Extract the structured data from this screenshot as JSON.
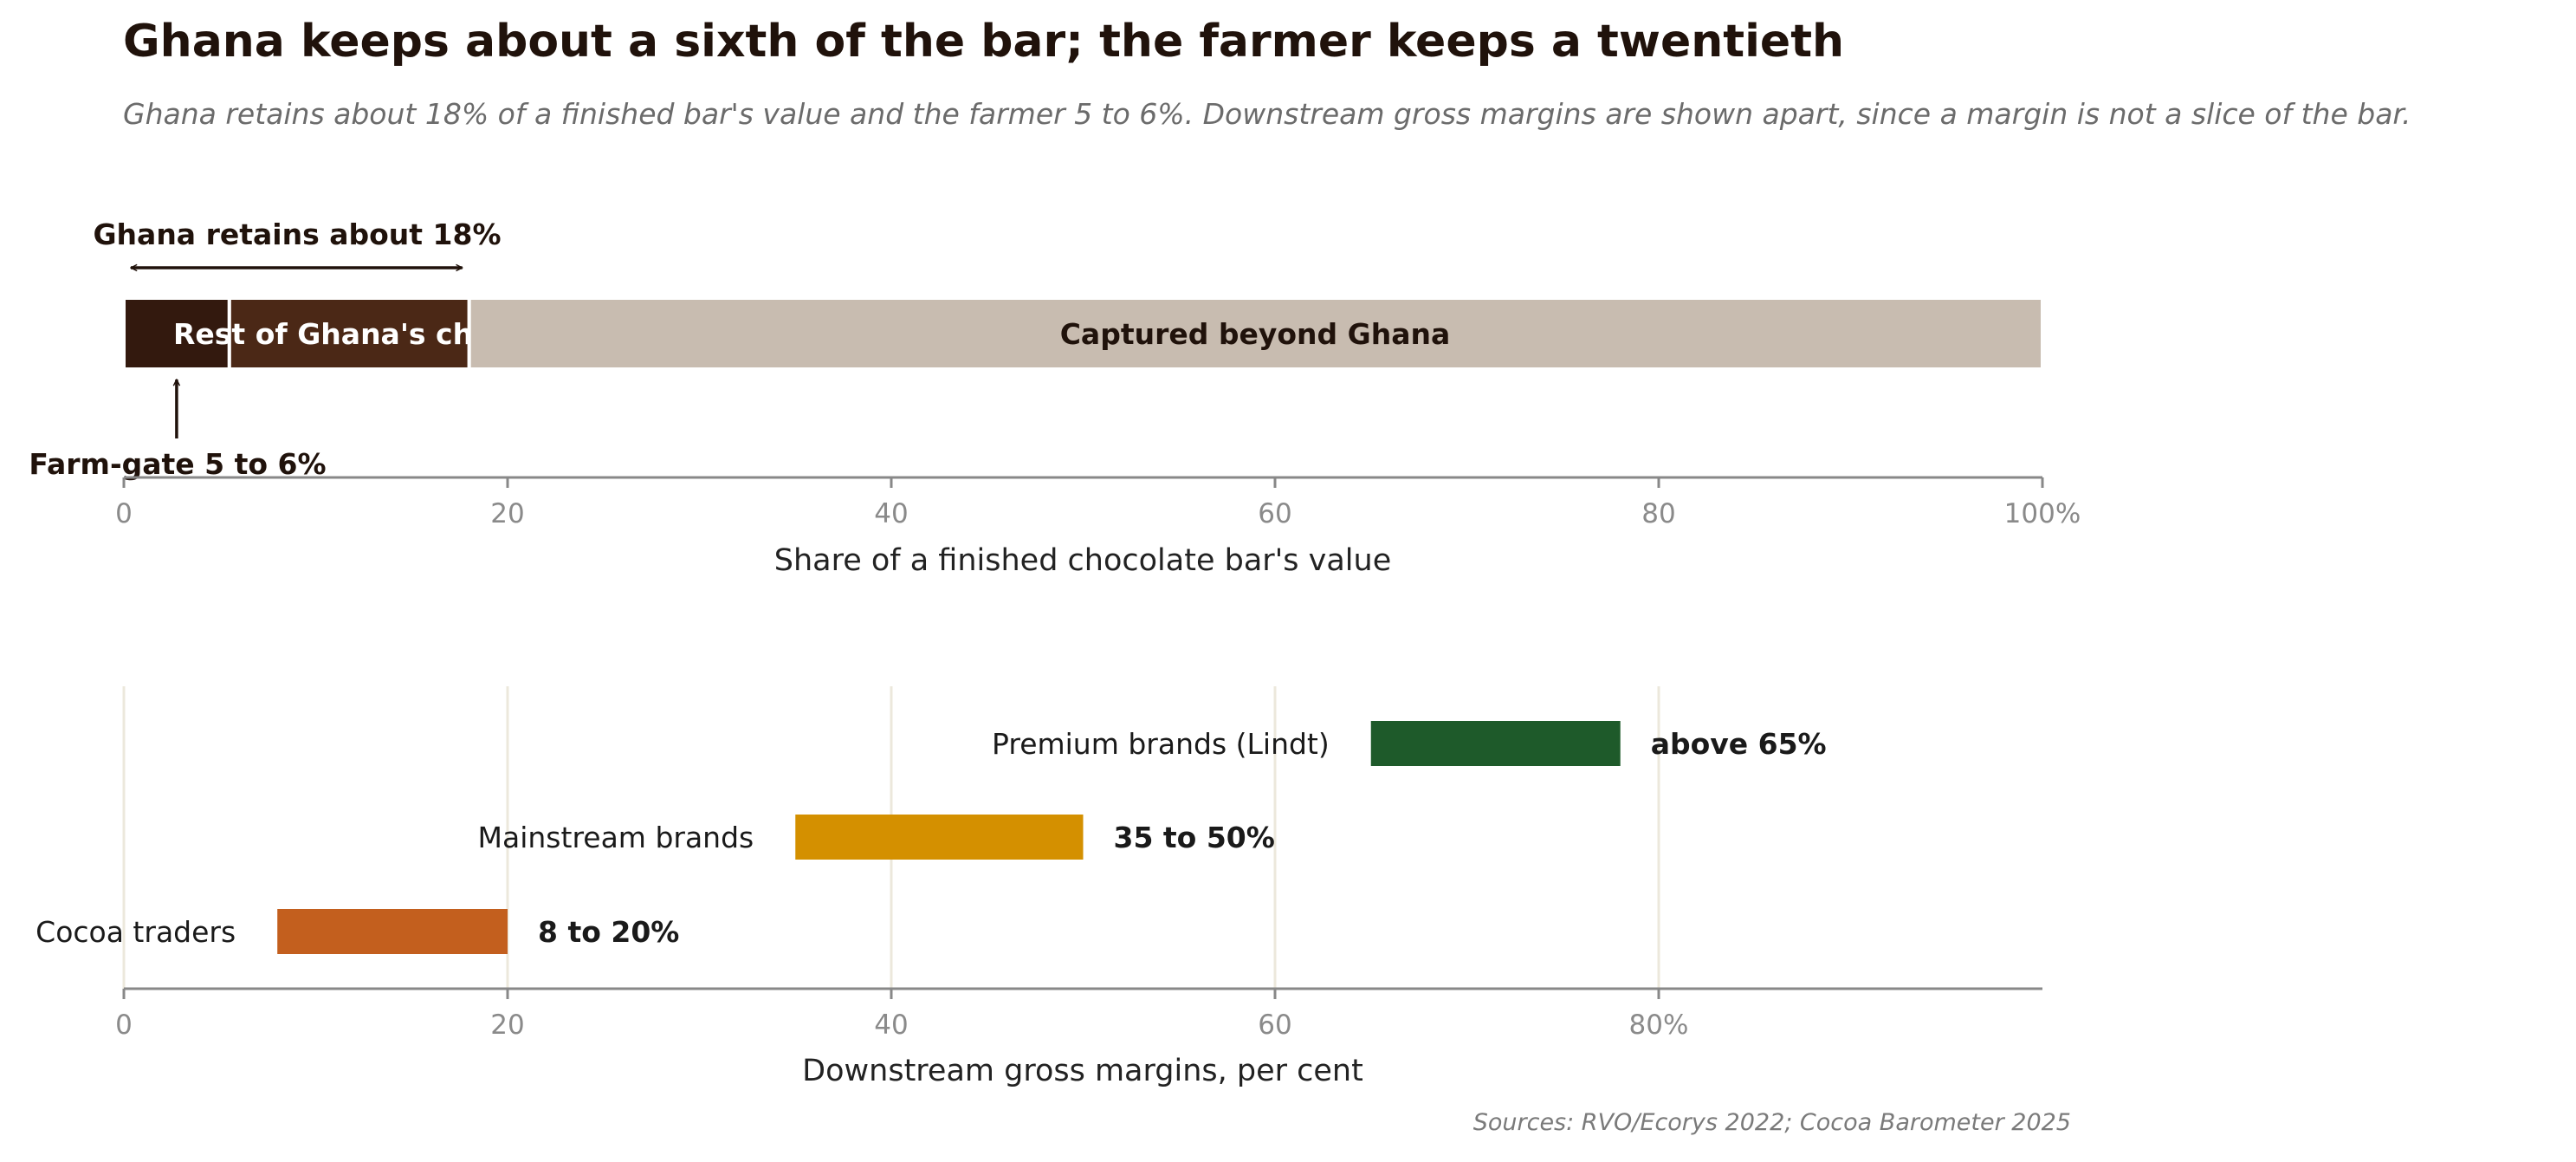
{
  "title": "Ghana keeps about a sixth of the bar; the farmer keeps a twentieth",
  "subtitle": "Ghana retains about 18% of a finished bar's value and the farmer 5 to 6%. Downstream gross margins are shown apart, since a margin is not a slice of the bar.",
  "source": "Sources: RVO/Ecorys 2022; Cocoa Barometer 2025",
  "colors": {
    "text_dark": "#20120b",
    "farm_gate": "#33190e",
    "rest_chain": "#4b2816",
    "beyond": "#c8bcb0",
    "axis": "#888888",
    "tick_label": "#8a8a8a",
    "grid": "#ece8dc",
    "premium": "#1e5a2a",
    "mainstream": "#d49000",
    "traders": "#c35f1e"
  },
  "chart_data": [
    {
      "type": "bar",
      "orientation": "horizontal-stacked",
      "segments": [
        {
          "label": "",
          "start": 0,
          "end": 5.5,
          "color": "#33190e"
        },
        {
          "label": "Rest of Ghana's chain",
          "start": 5.5,
          "end": 18,
          "color": "#4b2816"
        },
        {
          "label": "Captured beyond Ghana",
          "start": 18,
          "end": 100,
          "color": "#c8bcb0"
        }
      ],
      "annotations": {
        "bracket": {
          "label": "Ghana retains about 18%",
          "start": 0,
          "end": 18
        },
        "farm_gate": {
          "label": "Farm-gate 5 to 6%",
          "value": 2.75
        }
      },
      "xlabel": "Share of a finished chocolate bar's value",
      "xlim": [
        0,
        100
      ],
      "xticks": [
        0,
        20,
        40,
        60,
        80,
        100
      ],
      "xtick_labels": [
        "0",
        "20",
        "40",
        "60",
        "80",
        "100%"
      ],
      "grid": false
    },
    {
      "type": "bar",
      "orientation": "horizontal-range",
      "categories": [
        "Premium brands (Lindt)",
        "Mainstream brands",
        "Cocoa traders"
      ],
      "ranges": [
        {
          "low": 65,
          "high": 78,
          "label": "above 65%",
          "color": "#1e5a2a"
        },
        {
          "low": 35,
          "high": 50,
          "label": "35 to 50%",
          "color": "#d49000"
        },
        {
          "low": 8,
          "high": 20,
          "label": "8 to 20%",
          "color": "#c35f1e"
        }
      ],
      "xlabel": "Downstream gross margins, per cent",
      "xlim": [
        0,
        100
      ],
      "xticks": [
        0,
        20,
        40,
        60,
        80
      ],
      "xtick_labels": [
        "0",
        "20",
        "40",
        "60",
        "80%"
      ],
      "grid": true
    }
  ]
}
